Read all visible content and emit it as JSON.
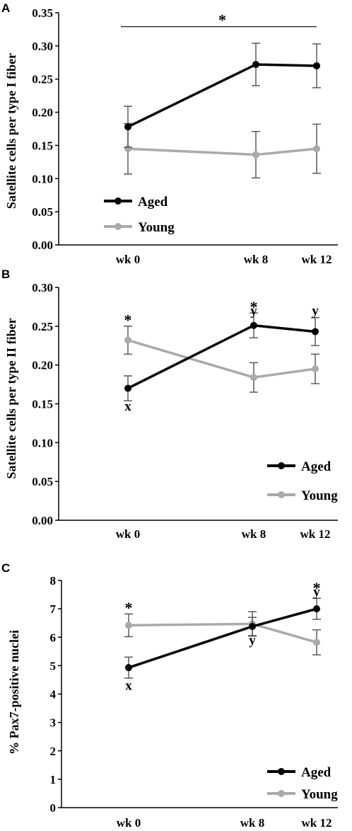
{
  "colors": {
    "aged": "#000000",
    "young": "#aaaaaa",
    "error_bar": "#5a5a5a",
    "axis": "#000000"
  },
  "chart_data": [
    {
      "type": "line",
      "panel": "A",
      "ylabel": "Satellite cells per type I fiber",
      "x": [
        "wk 0",
        "wk 8",
        "wk 12"
      ],
      "x_weeks": [
        0,
        8,
        12
      ],
      "ylim": [
        0,
        0.35
      ],
      "yticks": [
        "0.00",
        "0.05",
        "0.10",
        "0.15",
        "0.20",
        "0.25",
        "0.30",
        "0.35"
      ],
      "grid": false,
      "legend_position": "bottom-left",
      "series": [
        {
          "name": "Aged",
          "values": [
            0.178,
            0.272,
            0.27
          ],
          "error": [
            0.031,
            0.032,
            0.033
          ]
        },
        {
          "name": "Young",
          "values": [
            0.145,
            0.136,
            0.145
          ],
          "error": [
            0.038,
            0.035,
            0.037
          ]
        }
      ],
      "annotations": [
        {
          "text": "*",
          "bracket_from": "wk 0",
          "bracket_to": "wk 12",
          "y": 0.329
        }
      ]
    },
    {
      "type": "line",
      "panel": "B",
      "ylabel": "Satellite cells per type II fiber",
      "x": [
        "wk 0",
        "wk 8",
        "wk 12"
      ],
      "x_weeks": [
        0,
        8,
        12
      ],
      "ylim": [
        0,
        0.3
      ],
      "yticks": [
        "0.00",
        "0.05",
        "0.10",
        "0.15",
        "0.20",
        "0.25",
        "0.30"
      ],
      "grid": false,
      "legend_position": "bottom-right",
      "series": [
        {
          "name": "Aged",
          "values": [
            0.17,
            0.251,
            0.243
          ],
          "error": [
            0.016,
            0.016,
            0.018
          ]
        },
        {
          "name": "Young",
          "values": [
            0.232,
            0.184,
            0.195
          ],
          "error": [
            0.018,
            0.019,
            0.019
          ]
        }
      ],
      "annotations": [
        {
          "text": "*",
          "x": "wk 0",
          "y": 0.264
        },
        {
          "text": "x",
          "x": "wk 0",
          "y": 0.147
        },
        {
          "text": "*",
          "x": "wk 8",
          "y": 0.281
        },
        {
          "text": "y",
          "x": "wk 8",
          "y": 0.27
        },
        {
          "text": "y",
          "x": "wk 12",
          "y": 0.27
        }
      ]
    },
    {
      "type": "line",
      "panel": "C",
      "ylabel": "% Pax7-positive nuclei",
      "x": [
        "wk 0",
        "wk 8",
        "wk 12"
      ],
      "x_weeks": [
        0,
        8,
        12
      ],
      "ylim": [
        0,
        8
      ],
      "yticks": [
        "0",
        "1",
        "2",
        "3",
        "4",
        "5",
        "6",
        "7",
        "8"
      ],
      "grid": false,
      "legend_position": "bottom-right",
      "series": [
        {
          "name": "Aged",
          "values": [
            4.93,
            6.38,
            7.0
          ],
          "error": [
            0.37,
            0.32,
            0.37
          ]
        },
        {
          "name": "Young",
          "values": [
            6.42,
            6.47,
            5.82
          ],
          "error": [
            0.4,
            0.43,
            0.44
          ]
        }
      ],
      "annotations": [
        {
          "text": "*",
          "x": "wk 0",
          "y": 7.2
        },
        {
          "text": "x",
          "x": "wk 0",
          "y": 4.3
        },
        {
          "text": "y",
          "x": "wk 8",
          "y": 5.9
        },
        {
          "text": "*",
          "x": "wk 12",
          "y": 7.9
        },
        {
          "text": "y",
          "x": "wk 12",
          "y": 7.6
        }
      ]
    }
  ]
}
